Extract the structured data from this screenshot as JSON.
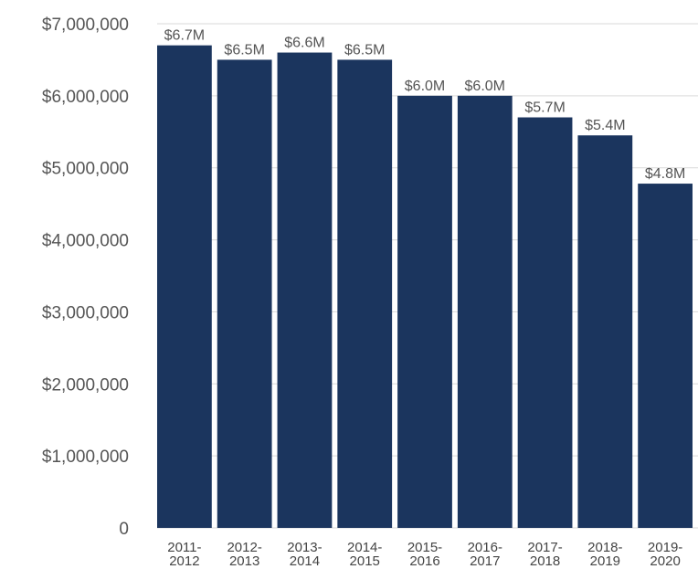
{
  "chart_data": {
    "type": "bar",
    "categories": [
      [
        "2011-",
        "2012"
      ],
      [
        "2012-",
        "2013"
      ],
      [
        "2013-",
        "2014"
      ],
      [
        "2014-",
        "2015"
      ],
      [
        "2015-",
        "2016"
      ],
      [
        "2016-",
        "2017"
      ],
      [
        "2017-",
        "2018"
      ],
      [
        "2018-",
        "2019"
      ],
      [
        "2019-",
        "2020"
      ]
    ],
    "values": [
      6700000,
      6500000,
      6600000,
      6500000,
      6000000,
      6000000,
      5700000,
      5450000,
      4780000
    ],
    "data_labels": [
      "$6.7M",
      "$6.5M",
      "$6.6M",
      "$6.5M",
      "$6.0M",
      "$6.0M",
      "$5.7M",
      "$5.4M",
      "$4.8M"
    ],
    "y_ticks": [
      {
        "value": 0,
        "label": "0"
      },
      {
        "value": 1000000,
        "label": "$1,000,000"
      },
      {
        "value": 2000000,
        "label": "$2,000,000"
      },
      {
        "value": 3000000,
        "label": "$3,000,000"
      },
      {
        "value": 4000000,
        "label": "$4,000,000"
      },
      {
        "value": 5000000,
        "label": "$5,000,000"
      },
      {
        "value": 6000000,
        "label": "$6,000,000"
      },
      {
        "value": 7000000,
        "label": "$7,000,000"
      }
    ],
    "ylim": [
      0,
      7000000
    ],
    "title": "",
    "xlabel": "",
    "ylabel": "",
    "grid": true,
    "bar_color": "#1b355e"
  }
}
